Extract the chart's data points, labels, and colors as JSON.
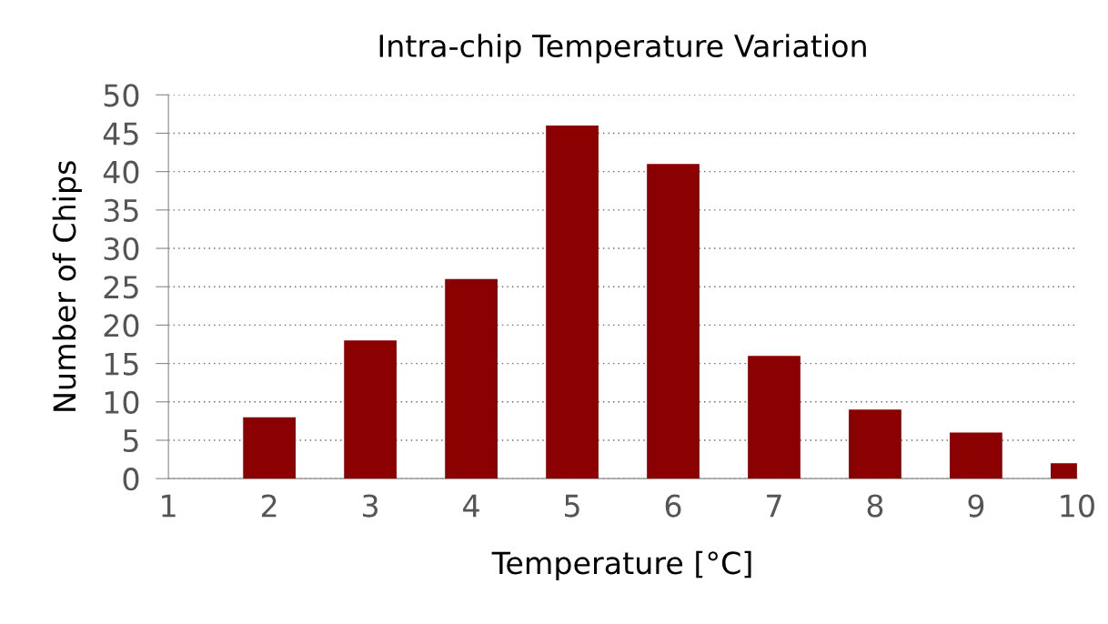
{
  "chart_data": {
    "type": "bar",
    "title": "Intra-chip Temperature Variation",
    "xlabel": "Temperature [°C]",
    "ylabel": "Number of Chips",
    "x": [
      2,
      3,
      4,
      5,
      6,
      7,
      8,
      9,
      10
    ],
    "values": [
      8,
      18,
      26,
      46,
      41,
      16,
      9,
      6,
      2
    ],
    "color": "#8b0000",
    "xlim": [
      1,
      10
    ],
    "xticks": [
      1,
      2,
      3,
      4,
      5,
      6,
      7,
      8,
      9,
      10
    ],
    "ylim": [
      0,
      50
    ],
    "yticks": [
      0,
      5,
      10,
      15,
      20,
      25,
      30,
      35,
      40,
      45,
      50
    ],
    "grid": "y",
    "legend": false
  }
}
